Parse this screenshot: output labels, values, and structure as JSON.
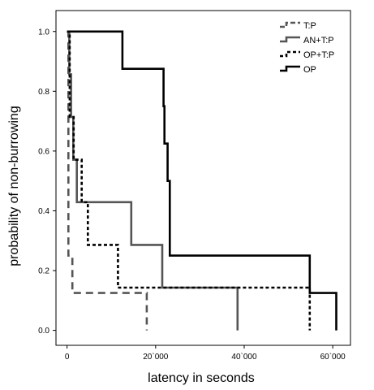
{
  "chart_data": {
    "type": "line",
    "subtype": "step",
    "title": "",
    "xlabel": "latency in seconds",
    "ylabel": "probability of non-burrowing",
    "xlim": [
      -2500,
      64000
    ],
    "ylim": [
      -0.05,
      1.07
    ],
    "x_ticks": [
      {
        "value": 0,
        "label": "0"
      },
      {
        "value": 20000,
        "label": "20`000"
      },
      {
        "value": 40000,
        "label": "40`000"
      },
      {
        "value": 60000,
        "label": "60`000"
      }
    ],
    "y_ticks": [
      {
        "value": 0.0,
        "label": "0.0"
      },
      {
        "value": 0.2,
        "label": "0.2"
      },
      {
        "value": 0.4,
        "label": "0.4"
      },
      {
        "value": 0.6,
        "label": "0.6"
      },
      {
        "value": 0.8,
        "label": "0.8"
      },
      {
        "value": 1.0,
        "label": "1.0"
      }
    ],
    "grid": false,
    "legend_position": "top-right",
    "series": [
      {
        "name": "T:P",
        "color": "#555555",
        "dash": "dashed",
        "points": [
          [
            0,
            1.0
          ],
          [
            300,
            1.0
          ],
          [
            300,
            0.25
          ],
          [
            1200,
            0.25
          ],
          [
            1200,
            0.125
          ],
          [
            18000,
            0.125
          ],
          [
            18000,
            0.0
          ]
        ]
      },
      {
        "name": "AN+T:P",
        "color": "#555555",
        "dash": "solid",
        "points": [
          [
            0,
            1.0
          ],
          [
            500,
            1.0
          ],
          [
            500,
            0.857
          ],
          [
            900,
            0.857
          ],
          [
            900,
            0.714
          ],
          [
            1400,
            0.714
          ],
          [
            1400,
            0.571
          ],
          [
            2200,
            0.571
          ],
          [
            2200,
            0.429
          ],
          [
            14500,
            0.429
          ],
          [
            14500,
            0.286
          ],
          [
            21500,
            0.286
          ],
          [
            21500,
            0.143
          ],
          [
            38500,
            0.143
          ],
          [
            38500,
            0.0
          ]
        ]
      },
      {
        "name": "OP+T:P",
        "color": "#000000",
        "dash": "dotted",
        "points": [
          [
            0,
            1.0
          ],
          [
            600,
            1.0
          ],
          [
            600,
            0.714
          ],
          [
            1500,
            0.714
          ],
          [
            1500,
            0.571
          ],
          [
            3300,
            0.571
          ],
          [
            3300,
            0.429
          ],
          [
            4700,
            0.429
          ],
          [
            4700,
            0.286
          ],
          [
            11500,
            0.286
          ],
          [
            11500,
            0.143
          ],
          [
            54800,
            0.143
          ],
          [
            54800,
            0.0
          ]
        ]
      },
      {
        "name": "OP",
        "color": "#000000",
        "dash": "solid",
        "points": [
          [
            0,
            1.0
          ],
          [
            12500,
            1.0
          ],
          [
            12500,
            0.875
          ],
          [
            21800,
            0.875
          ],
          [
            21800,
            0.75
          ],
          [
            22000,
            0.75
          ],
          [
            22000,
            0.625
          ],
          [
            22700,
            0.625
          ],
          [
            22700,
            0.5
          ],
          [
            23200,
            0.5
          ],
          [
            23200,
            0.25
          ],
          [
            54800,
            0.25
          ],
          [
            54800,
            0.125
          ],
          [
            60800,
            0.125
          ],
          [
            60800,
            0.0
          ]
        ]
      }
    ]
  }
}
